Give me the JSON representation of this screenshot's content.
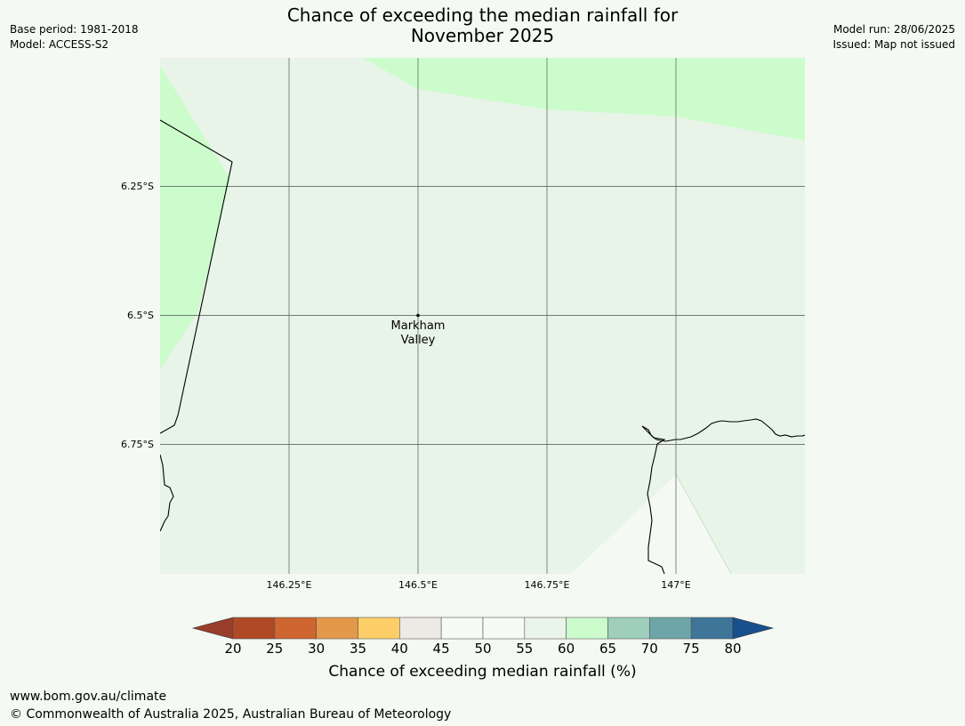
{
  "title_line1": "Chance of exceeding the median rainfall for",
  "title_line2": "November 2025",
  "meta_left": {
    "base_period": "Base period: 1981-2018",
    "model": "Model: ACCESS-S2"
  },
  "meta_right": {
    "model_run": "Model run: 28/06/2025",
    "issued": "Issued: Map not issued"
  },
  "map": {
    "lat_labels": [
      "6.25°S",
      "6.5°S",
      "6.75°S"
    ],
    "lon_labels": [
      "146.25°E",
      "146.5°E",
      "146.75°E",
      "147°E"
    ],
    "place": {
      "name_line1": "Markham",
      "name_line2": "Valley"
    }
  },
  "colorbar": {
    "ticks": [
      "20",
      "25",
      "30",
      "35",
      "40",
      "45",
      "50",
      "55",
      "60",
      "65",
      "70",
      "75",
      "80"
    ],
    "label": "Chance of exceeding median rainfall (%)",
    "bin_colors": [
      "#b04a26",
      "#cf6531",
      "#e4984a",
      "#fdce68",
      "#ede9e5",
      "#f7fbf5",
      "#f7fbf5",
      "#eaf5e9",
      "#ccfccc",
      "#9fcfbc",
      "#6ea6a8",
      "#3e7599"
    ],
    "under_color": "#9a3d2a",
    "over_color": "#18508e"
  },
  "footer": {
    "url": "www.bom.gov.au/climate",
    "copyright": "© Commonwealth of Australia 2025, Australian Bureau of Meteorology"
  }
}
